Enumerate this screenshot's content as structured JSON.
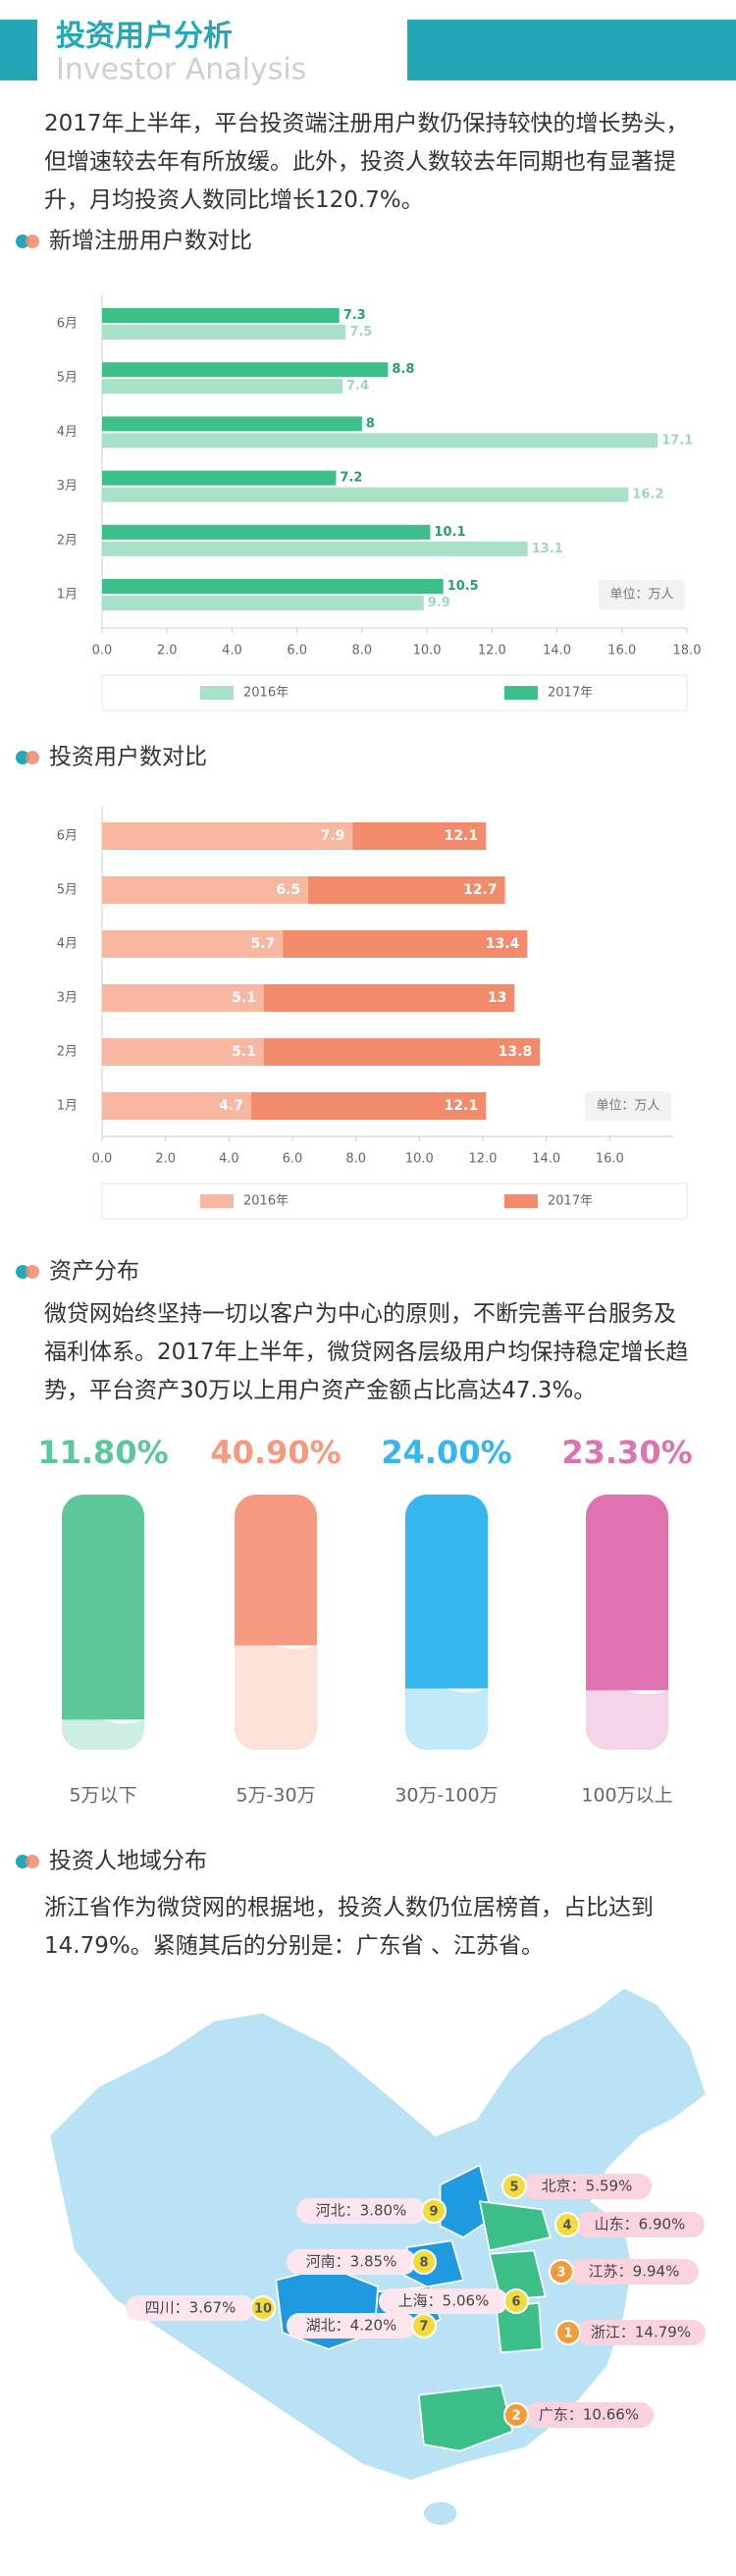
{
  "header": {
    "title": "投资用户分析",
    "subtitle": "Investor Analysis"
  },
  "paragraphs": [
    "2017年上半年，平台投资端注册用户数仍保持较快的增长势头，但增速较去年有所放缓。此外，投资人数较去年同期也有显著提升，月均投资人数同比增长120.7%。",
    "微贷网始终坚持一切以客户为中心的原则，不断完善平台服务及福利体系。2017年上半年，微贷网各层级用户均保持稳定增长趋势，平台资产30万以上用户资产金额占比高达47.3%。",
    "浙江省作为微贷网的根据地，投资人数仍位居榜首，占比达到14.79%。紧随其后的分别是：广东省 、江苏省。"
  ],
  "sections": [
    "新增注册用户数对比",
    "投资用户数对比",
    "资产分布",
    "投资人地域分布"
  ],
  "chart_data": [
    {
      "type": "bar",
      "orientation": "horizontal",
      "barmode": "group",
      "categories": [
        "1月",
        "2月",
        "3月",
        "4月",
        "5月",
        "6月"
      ],
      "series": [
        {
          "name": "2016年",
          "color": "#a8e0c8",
          "values": [
            9.9,
            13.1,
            16.2,
            17.1,
            7.4,
            7.5
          ]
        },
        {
          "name": "2017年",
          "color": "#3dbf8a",
          "values": [
            10.5,
            10.1,
            7.2,
            8.0,
            8.8,
            7.3
          ]
        }
      ],
      "xlim": [
        0,
        18
      ],
      "xticks": [
        {
          "value": 0,
          "label": "0.0"
        },
        {
          "value": 2,
          "label": "2.0"
        },
        {
          "value": 4,
          "label": "4.0"
        },
        {
          "value": 6,
          "label": "6.0"
        },
        {
          "value": 8,
          "label": "8.0"
        },
        {
          "value": 10,
          "label": "10.0"
        },
        {
          "value": 12,
          "label": "12.0"
        },
        {
          "value": 14,
          "label": "14.0"
        },
        {
          "value": 16,
          "label": "16.0"
        },
        {
          "value": 18,
          "label": "18.0"
        }
      ],
      "unit": "单位：万人",
      "legend": "bottom"
    },
    {
      "type": "bar",
      "orientation": "horizontal",
      "barmode": "overlay",
      "categories": [
        "1月",
        "2月",
        "3月",
        "4月",
        "5月",
        "6月"
      ],
      "series": [
        {
          "name": "2016年",
          "color": "#f7b7a1",
          "values": [
            4.7,
            5.1,
            5.1,
            5.7,
            6.5,
            7.9
          ]
        },
        {
          "name": "2017年",
          "color": "#f28b6c",
          "values": [
            12.1,
            13.8,
            13.0,
            13.4,
            12.7,
            12.1
          ]
        }
      ],
      "xlim": [
        0,
        18
      ],
      "xticks": [
        {
          "value": 0,
          "label": "0.0"
        },
        {
          "value": 2,
          "label": "2.0"
        },
        {
          "value": 4,
          "label": "4.0"
        },
        {
          "value": 6,
          "label": "6.0"
        },
        {
          "value": 8,
          "label": "8.0"
        },
        {
          "value": 10,
          "label": "10.0"
        },
        {
          "value": 12,
          "label": "12.0"
        },
        {
          "value": 14,
          "label": "14.0"
        },
        {
          "value": 16,
          "label": "16.0"
        }
      ],
      "unit": "单位：万人",
      "legend": "bottom"
    },
    {
      "type": "cylinder",
      "categories": [
        "5万以下",
        "5万-30万",
        "30万-100万",
        "100万以上"
      ],
      "values": [
        11.8,
        40.9,
        24.0,
        23.3
      ],
      "value_labels": [
        "11.80%",
        "40.90%",
        "24.00%",
        "23.30%"
      ],
      "colors": [
        "#5cc79a",
        "#f59a80",
        "#35b6ec",
        "#df72b0"
      ],
      "ylim": [
        0,
        100
      ]
    },
    {
      "type": "map",
      "ranks": [
        1,
        2,
        3,
        4,
        5,
        6,
        7,
        8,
        9,
        10
      ],
      "values": [
        14.79,
        10.66,
        9.94,
        6.9,
        5.59,
        5.06,
        4.2,
        3.85,
        3.8,
        3.67
      ],
      "value_labels": [
        "浙江：14.79%",
        "广东：10.66%",
        "江苏：9.94%",
        "山东：6.90%",
        "北京：5.59%",
        "上海：5.06%",
        "湖北：4.20%",
        "河南：3.85%",
        "河北：3.80%",
        "四川：3.67%"
      ]
    }
  ]
}
